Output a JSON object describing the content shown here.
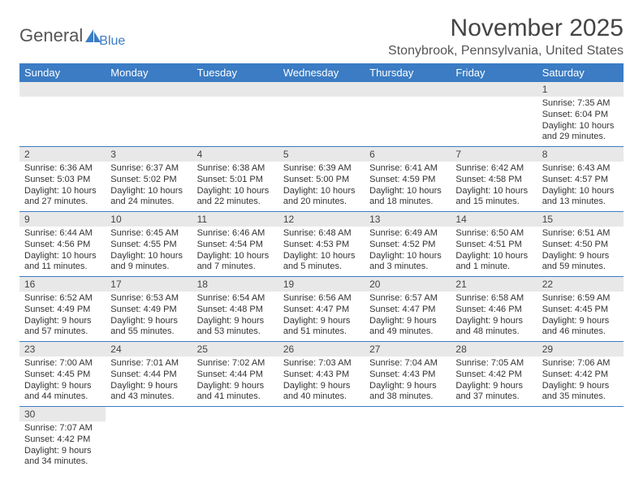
{
  "logo": {
    "text1": "General",
    "text2": "Blue",
    "sail_color": "#3b7cc4"
  },
  "title": "November 2025",
  "location": "Stonybrook, Pennsylvania, United States",
  "colors": {
    "header_bg": "#3b7cc4",
    "header_text": "#ffffff",
    "daynum_bg": "#e8e8e8",
    "cell_border": "#3b7cc4",
    "body_bg": "#ffffff",
    "text": "#333333"
  },
  "typography": {
    "title_fontsize": 30,
    "location_fontsize": 16,
    "dayheader_fontsize": 13,
    "cell_fontsize": 11
  },
  "day_headers": [
    "Sunday",
    "Monday",
    "Tuesday",
    "Wednesday",
    "Thursday",
    "Friday",
    "Saturday"
  ],
  "weeks": [
    [
      null,
      null,
      null,
      null,
      null,
      null,
      {
        "n": "1",
        "sr": "Sunrise: 7:35 AM",
        "ss": "Sunset: 6:04 PM",
        "dl": "Daylight: 10 hours and 29 minutes."
      }
    ],
    [
      {
        "n": "2",
        "sr": "Sunrise: 6:36 AM",
        "ss": "Sunset: 5:03 PM",
        "dl": "Daylight: 10 hours and 27 minutes."
      },
      {
        "n": "3",
        "sr": "Sunrise: 6:37 AM",
        "ss": "Sunset: 5:02 PM",
        "dl": "Daylight: 10 hours and 24 minutes."
      },
      {
        "n": "4",
        "sr": "Sunrise: 6:38 AM",
        "ss": "Sunset: 5:01 PM",
        "dl": "Daylight: 10 hours and 22 minutes."
      },
      {
        "n": "5",
        "sr": "Sunrise: 6:39 AM",
        "ss": "Sunset: 5:00 PM",
        "dl": "Daylight: 10 hours and 20 minutes."
      },
      {
        "n": "6",
        "sr": "Sunrise: 6:41 AM",
        "ss": "Sunset: 4:59 PM",
        "dl": "Daylight: 10 hours and 18 minutes."
      },
      {
        "n": "7",
        "sr": "Sunrise: 6:42 AM",
        "ss": "Sunset: 4:58 PM",
        "dl": "Daylight: 10 hours and 15 minutes."
      },
      {
        "n": "8",
        "sr": "Sunrise: 6:43 AM",
        "ss": "Sunset: 4:57 PM",
        "dl": "Daylight: 10 hours and 13 minutes."
      }
    ],
    [
      {
        "n": "9",
        "sr": "Sunrise: 6:44 AM",
        "ss": "Sunset: 4:56 PM",
        "dl": "Daylight: 10 hours and 11 minutes."
      },
      {
        "n": "10",
        "sr": "Sunrise: 6:45 AM",
        "ss": "Sunset: 4:55 PM",
        "dl": "Daylight: 10 hours and 9 minutes."
      },
      {
        "n": "11",
        "sr": "Sunrise: 6:46 AM",
        "ss": "Sunset: 4:54 PM",
        "dl": "Daylight: 10 hours and 7 minutes."
      },
      {
        "n": "12",
        "sr": "Sunrise: 6:48 AM",
        "ss": "Sunset: 4:53 PM",
        "dl": "Daylight: 10 hours and 5 minutes."
      },
      {
        "n": "13",
        "sr": "Sunrise: 6:49 AM",
        "ss": "Sunset: 4:52 PM",
        "dl": "Daylight: 10 hours and 3 minutes."
      },
      {
        "n": "14",
        "sr": "Sunrise: 6:50 AM",
        "ss": "Sunset: 4:51 PM",
        "dl": "Daylight: 10 hours and 1 minute."
      },
      {
        "n": "15",
        "sr": "Sunrise: 6:51 AM",
        "ss": "Sunset: 4:50 PM",
        "dl": "Daylight: 9 hours and 59 minutes."
      }
    ],
    [
      {
        "n": "16",
        "sr": "Sunrise: 6:52 AM",
        "ss": "Sunset: 4:49 PM",
        "dl": "Daylight: 9 hours and 57 minutes."
      },
      {
        "n": "17",
        "sr": "Sunrise: 6:53 AM",
        "ss": "Sunset: 4:49 PM",
        "dl": "Daylight: 9 hours and 55 minutes."
      },
      {
        "n": "18",
        "sr": "Sunrise: 6:54 AM",
        "ss": "Sunset: 4:48 PM",
        "dl": "Daylight: 9 hours and 53 minutes."
      },
      {
        "n": "19",
        "sr": "Sunrise: 6:56 AM",
        "ss": "Sunset: 4:47 PM",
        "dl": "Daylight: 9 hours and 51 minutes."
      },
      {
        "n": "20",
        "sr": "Sunrise: 6:57 AM",
        "ss": "Sunset: 4:47 PM",
        "dl": "Daylight: 9 hours and 49 minutes."
      },
      {
        "n": "21",
        "sr": "Sunrise: 6:58 AM",
        "ss": "Sunset: 4:46 PM",
        "dl": "Daylight: 9 hours and 48 minutes."
      },
      {
        "n": "22",
        "sr": "Sunrise: 6:59 AM",
        "ss": "Sunset: 4:45 PM",
        "dl": "Daylight: 9 hours and 46 minutes."
      }
    ],
    [
      {
        "n": "23",
        "sr": "Sunrise: 7:00 AM",
        "ss": "Sunset: 4:45 PM",
        "dl": "Daylight: 9 hours and 44 minutes."
      },
      {
        "n": "24",
        "sr": "Sunrise: 7:01 AM",
        "ss": "Sunset: 4:44 PM",
        "dl": "Daylight: 9 hours and 43 minutes."
      },
      {
        "n": "25",
        "sr": "Sunrise: 7:02 AM",
        "ss": "Sunset: 4:44 PM",
        "dl": "Daylight: 9 hours and 41 minutes."
      },
      {
        "n": "26",
        "sr": "Sunrise: 7:03 AM",
        "ss": "Sunset: 4:43 PM",
        "dl": "Daylight: 9 hours and 40 minutes."
      },
      {
        "n": "27",
        "sr": "Sunrise: 7:04 AM",
        "ss": "Sunset: 4:43 PM",
        "dl": "Daylight: 9 hours and 38 minutes."
      },
      {
        "n": "28",
        "sr": "Sunrise: 7:05 AM",
        "ss": "Sunset: 4:42 PM",
        "dl": "Daylight: 9 hours and 37 minutes."
      },
      {
        "n": "29",
        "sr": "Sunrise: 7:06 AM",
        "ss": "Sunset: 4:42 PM",
        "dl": "Daylight: 9 hours and 35 minutes."
      }
    ],
    [
      {
        "n": "30",
        "sr": "Sunrise: 7:07 AM",
        "ss": "Sunset: 4:42 PM",
        "dl": "Daylight: 9 hours and 34 minutes."
      },
      null,
      null,
      null,
      null,
      null,
      null
    ]
  ]
}
